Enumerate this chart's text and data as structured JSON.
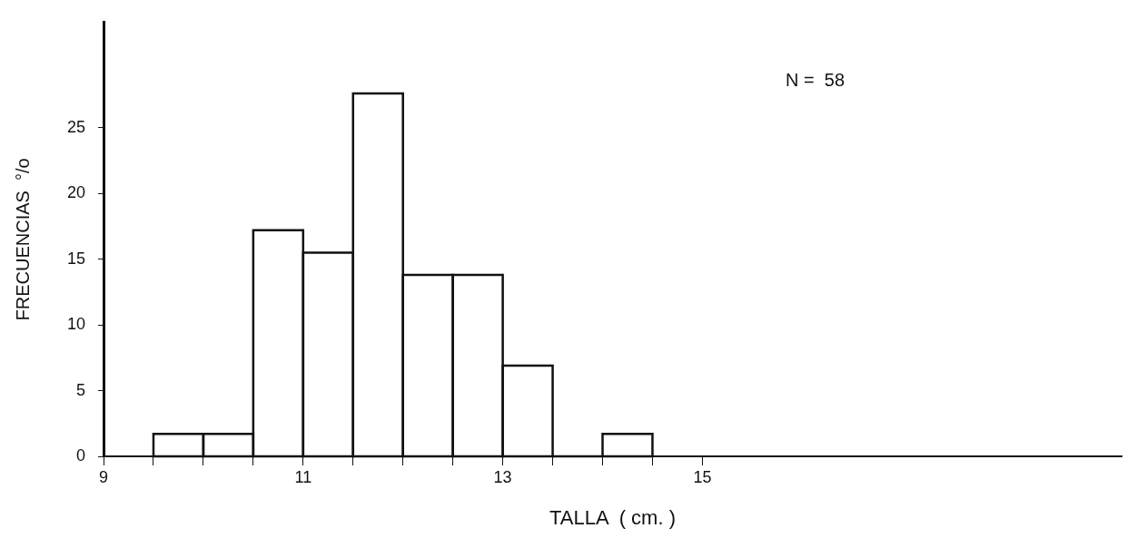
{
  "chart_data": {
    "type": "histogram",
    "bins": [
      9.5,
      10,
      10.5,
      11,
      11.5,
      12,
      12.5,
      13,
      13.5,
      14,
      14.5
    ],
    "values": [
      1.7,
      1.7,
      17.2,
      15.5,
      27.6,
      13.8,
      13.8,
      6.9,
      0,
      1.7
    ],
    "color": "#111111",
    "xlabel": "TALLA  ( cm. )",
    "ylabel": "FRECUENCIAS  °/o",
    "xlim": [
      9,
      19.2
    ],
    "xticks": [
      9,
      {
        "value": 9.5,
        "label": null
      },
      {
        "value": 10,
        "label": null
      },
      {
        "value": 10.5,
        "label": null
      },
      11,
      {
        "value": 11.5,
        "label": null
      },
      {
        "value": 12,
        "label": null
      },
      {
        "value": 12.5,
        "label": null
      },
      13,
      {
        "value": 13.5,
        "label": null
      },
      {
        "value": 14,
        "label": null
      },
      {
        "value": 14.5,
        "label": null
      },
      15
    ],
    "ylim": [
      0,
      33
    ],
    "yticks": [
      0,
      5,
      10,
      15,
      20,
      25
    ],
    "grid": false,
    "legend": false,
    "annotations": [
      "N =  58"
    ]
  }
}
